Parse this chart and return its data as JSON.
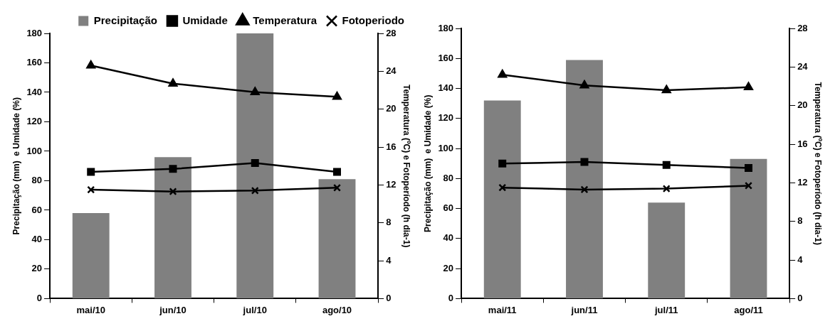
{
  "chart_data": [
    {
      "type": "bar",
      "categories": [
        "mai/10",
        "jun/10",
        "jul/10",
        "ago/10"
      ],
      "ylabel": "Precipitação (mm)  e Umidade (%)",
      "y2label": "Temperatura (ºC) e Fotoperíodo (h dia-1)",
      "ylim": [
        0,
        180
      ],
      "yticks": [
        0,
        20,
        40,
        60,
        80,
        100,
        120,
        140,
        160,
        180
      ],
      "y2lim": [
        0,
        28
      ],
      "y2ticks": [
        0,
        4,
        8,
        12,
        16,
        20,
        24,
        28
      ],
      "legend": "top",
      "series": [
        {
          "name": "Precipitação",
          "color": "#808080",
          "values": [
            58,
            96,
            180,
            81
          ]
        },
        {
          "name": "Umidade",
          "type": "line",
          "marker": "square",
          "color": "#000000",
          "values": [
            86,
            88,
            92,
            86
          ]
        },
        {
          "name": "Temperatura",
          "type": "line",
          "marker": "triangle",
          "axis": "y2",
          "color": "#000000",
          "values": [
            24.6,
            22.7,
            21.8,
            21.3
          ]
        },
        {
          "name": "Fotoperiodo",
          "type": "line",
          "marker": "cross",
          "axis": "y2",
          "color": "#000000",
          "values": [
            11.5,
            11.3,
            11.4,
            11.7
          ]
        }
      ]
    },
    {
      "type": "bar",
      "categories": [
        "mai/11",
        "jun/11",
        "jul/11",
        "ago/11"
      ],
      "ylabel": "Precipitação (mm)  e Umidade (%)",
      "y2label": "Temperatura (ºC) e Fotoperíodo (h dia-1)",
      "ylim": [
        0,
        180
      ],
      "yticks": [
        0,
        20,
        40,
        60,
        80,
        100,
        120,
        140,
        160,
        180
      ],
      "y2lim": [
        0,
        28
      ],
      "y2ticks": [
        0,
        4,
        8,
        12,
        16,
        20,
        24,
        28
      ],
      "series": [
        {
          "color": "#808080",
          "values": [
            132,
            159,
            64,
            93
          ]
        },
        {
          "type": "line",
          "marker": "square",
          "color": "#000000",
          "values": [
            90,
            91,
            89,
            87
          ]
        },
        {
          "type": "line",
          "marker": "triangle",
          "axis": "y2",
          "color": "#000000",
          "values": [
            23.2,
            22.1,
            21.6,
            21.9
          ]
        },
        {
          "type": "line",
          "marker": "cross",
          "axis": "y2",
          "color": "#000000",
          "values": [
            11.5,
            11.3,
            11.4,
            11.7
          ]
        }
      ]
    }
  ]
}
